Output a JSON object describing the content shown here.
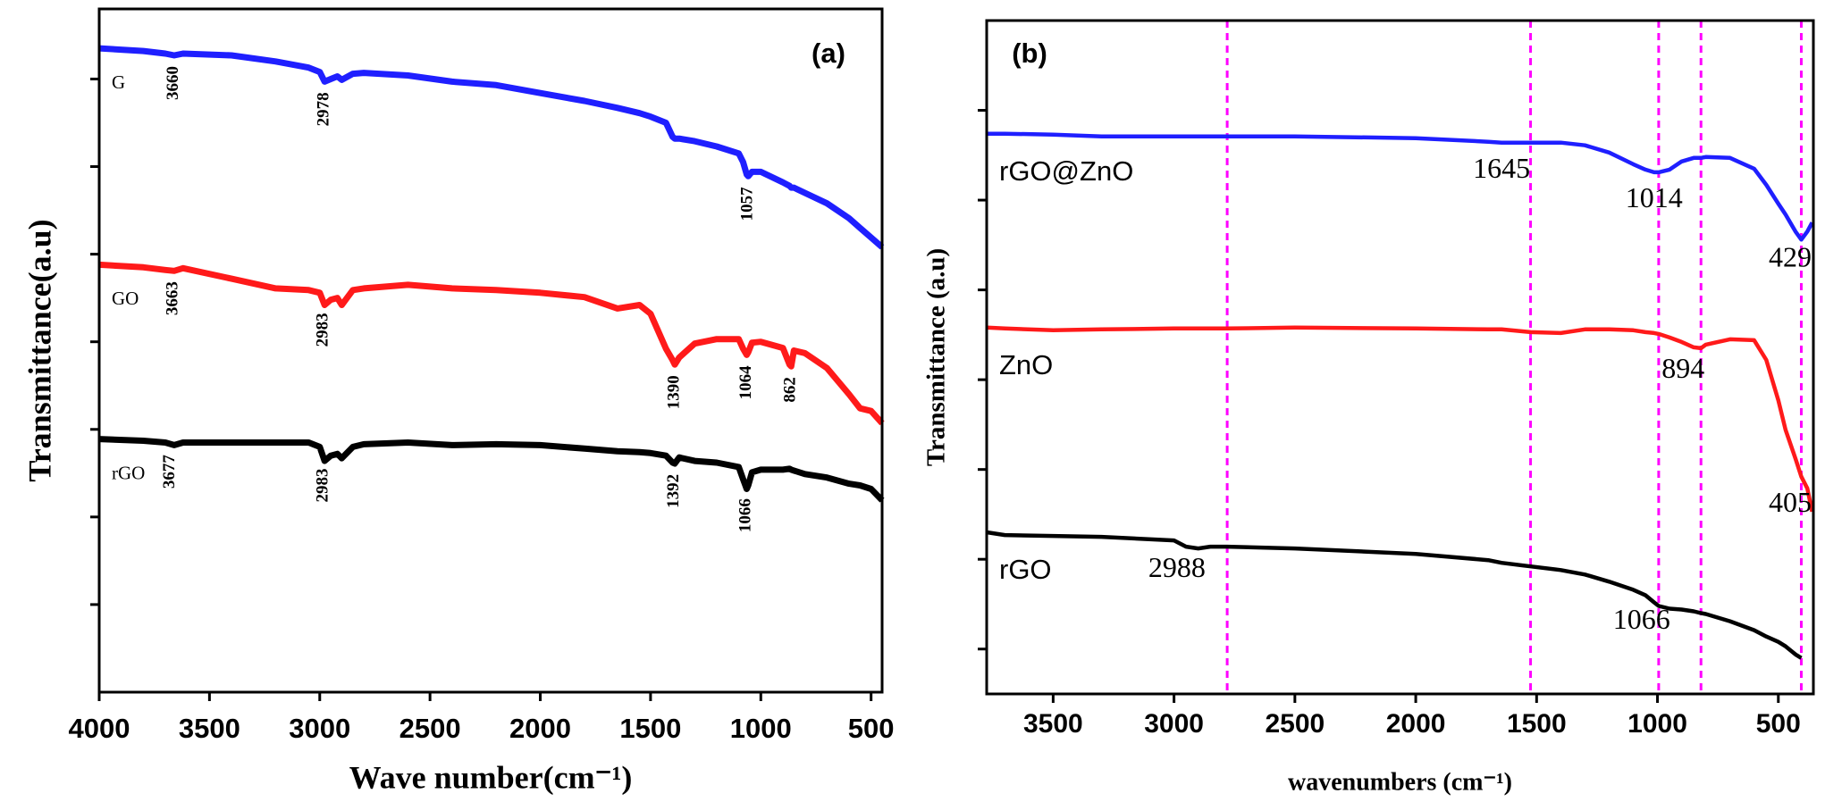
{
  "chart_data": [
    {
      "type": "line",
      "title": "(a)",
      "xlabel": "Wave number(cm⁻¹)",
      "ylabel": "Transmittance(a.u)",
      "x": [
        4000,
        3800,
        3700,
        3660,
        3620,
        3400,
        3200,
        3050,
        3000,
        2978,
        2950,
        2920,
        2900,
        2850,
        2800,
        2600,
        2400,
        2200,
        2000,
        1800,
        1650,
        1550,
        1500,
        1430,
        1400,
        1390,
        1370,
        1300,
        1200,
        1100,
        1080,
        1064,
        1057,
        1040,
        1000,
        900,
        870,
        862,
        850,
        800,
        700,
        600,
        550,
        500,
        450
      ],
      "xlim": [
        4000,
        450
      ],
      "xticks": [
        4000,
        3500,
        3000,
        2500,
        2000,
        1500,
        1000,
        500
      ],
      "ylim": [
        0,
        7.8
      ],
      "yticks": [
        1,
        2,
        3,
        4,
        5,
        6,
        7
      ],
      "series": [
        {
          "name": "G",
          "color": "#1f1fff",
          "peak_labels": [
            "3660",
            "2978",
            "1057"
          ],
          "values": [
            7.35,
            7.32,
            7.29,
            7.27,
            7.29,
            7.27,
            7.2,
            7.13,
            7.08,
            6.97,
            7.0,
            7.03,
            6.99,
            7.06,
            7.07,
            7.04,
            6.97,
            6.93,
            6.84,
            6.75,
            6.67,
            6.61,
            6.57,
            6.5,
            6.34,
            6.32,
            6.32,
            6.29,
            6.23,
            6.15,
            6.05,
            5.91,
            5.89,
            5.94,
            5.94,
            5.82,
            5.78,
            5.76,
            5.76,
            5.7,
            5.58,
            5.41,
            5.3,
            5.19,
            5.08
          ]
        },
        {
          "name": "GO",
          "color": "#ff1a1a",
          "peak_labels": [
            "3663",
            "2983",
            "1390",
            "1064",
            "862"
          ],
          "values": [
            4.88,
            4.85,
            4.82,
            4.81,
            4.84,
            4.72,
            4.61,
            4.59,
            4.56,
            4.42,
            4.48,
            4.5,
            4.42,
            4.59,
            4.61,
            4.65,
            4.61,
            4.59,
            4.56,
            4.51,
            4.38,
            4.42,
            4.32,
            3.92,
            3.79,
            3.74,
            3.82,
            3.98,
            4.03,
            4.03,
            3.92,
            3.85,
            3.88,
            3.99,
            4.0,
            3.93,
            3.74,
            3.72,
            3.9,
            3.87,
            3.7,
            3.4,
            3.24,
            3.21,
            3.07
          ]
        },
        {
          "name": "rGO",
          "color": "#000000",
          "peak_labels": [
            "3677",
            "2983",
            "1392",
            "1066"
          ],
          "values": [
            2.89,
            2.87,
            2.85,
            2.82,
            2.85,
            2.85,
            2.85,
            2.85,
            2.8,
            2.64,
            2.7,
            2.72,
            2.67,
            2.8,
            2.83,
            2.85,
            2.82,
            2.83,
            2.82,
            2.78,
            2.75,
            2.74,
            2.73,
            2.7,
            2.62,
            2.61,
            2.68,
            2.64,
            2.62,
            2.57,
            2.43,
            2.32,
            2.36,
            2.51,
            2.54,
            2.54,
            2.55,
            2.54,
            2.53,
            2.49,
            2.45,
            2.38,
            2.36,
            2.32,
            2.19
          ]
        }
      ]
    },
    {
      "type": "line",
      "title": "(b)",
      "xlabel": "wavenumbers (cm⁻¹)",
      "ylabel": "Transmittance (a.u)",
      "x": [
        3775,
        3700,
        3500,
        3300,
        3000,
        2950,
        2900,
        2850,
        2780,
        2500,
        2000,
        1700,
        1645,
        1525,
        1400,
        1300,
        1200,
        1100,
        1050,
        1014,
        995,
        950,
        900,
        850,
        820,
        800,
        700,
        600,
        550,
        500,
        470,
        429,
        405,
        380,
        360
      ],
      "xlim": [
        3775,
        355
      ],
      "xticks": [
        3500,
        3000,
        2500,
        2000,
        1500,
        1000,
        500
      ],
      "ylim": [
        0.5,
        8
      ],
      "yticks": [
        1,
        2,
        3,
        4,
        5,
        6,
        7
      ],
      "vlines": [
        2780,
        1525,
        995,
        820,
        405
      ],
      "vline_color": "#ff00ff",
      "series": [
        {
          "name": "rGO@ZnO",
          "color": "#1f1fff",
          "peak_labels": [
            "1645",
            "1014",
            "429"
          ],
          "values": [
            6.74,
            6.74,
            6.73,
            6.71,
            6.71,
            6.71,
            6.71,
            6.71,
            6.71,
            6.71,
            6.69,
            6.65,
            6.64,
            6.64,
            6.64,
            6.61,
            6.53,
            6.4,
            6.34,
            6.31,
            6.31,
            6.34,
            6.43,
            6.47,
            6.47,
            6.48,
            6.47,
            6.35,
            6.17,
            5.96,
            5.84,
            5.65,
            5.56,
            5.65,
            5.75
          ]
        },
        {
          "name": "ZnO",
          "color": "#ff1a1a",
          "peak_labels": [
            "894",
            "405"
          ],
          "values": [
            4.58,
            4.57,
            4.55,
            4.56,
            4.57,
            4.57,
            4.57,
            4.57,
            4.57,
            4.58,
            4.57,
            4.56,
            4.56,
            4.53,
            4.52,
            4.56,
            4.56,
            4.55,
            4.53,
            4.52,
            4.51,
            4.47,
            4.42,
            4.36,
            4.35,
            4.39,
            4.45,
            4.44,
            4.22,
            3.77,
            3.44,
            3.12,
            2.92,
            2.79,
            2.53
          ]
        },
        {
          "name": "rGO",
          "color": "#000000",
          "peak_labels": [
            "2988",
            "1066"
          ],
          "values": [
            2.3,
            2.27,
            2.26,
            2.25,
            2.21,
            2.14,
            2.12,
            2.14,
            2.14,
            2.12,
            2.06,
            1.99,
            1.96,
            1.92,
            1.88,
            1.83,
            1.75,
            1.66,
            1.6,
            1.52,
            1.48,
            1.45,
            1.44,
            1.42,
            1.4,
            1.39,
            1.31,
            1.21,
            1.14,
            1.08,
            1.03,
            0.94,
            0.9,
            null,
            null
          ]
        }
      ]
    }
  ]
}
